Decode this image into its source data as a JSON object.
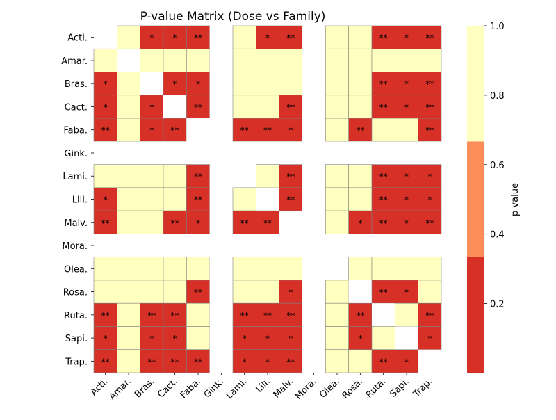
{
  "chart_data": {
    "type": "heatmap",
    "title": "P-value Matrix (Dose vs Family)",
    "labels": [
      "Acti.",
      "Amar.",
      "Bras.",
      "Cact.",
      "Faba.",
      "Gink.",
      "Lami.",
      "Lili.",
      "Malv.",
      "Mora.",
      "Olea.",
      "Rosa.",
      "Ruta.",
      "Sapi.",
      "Trap."
    ],
    "values": [
      [
        null,
        0.9,
        0.02,
        0.02,
        0.004,
        null,
        0.9,
        0.02,
        0.004,
        null,
        0.9,
        0.9,
        0.004,
        0.02,
        0.004
      ],
      [
        0.9,
        null,
        0.9,
        0.9,
        0.9,
        null,
        0.9,
        0.9,
        0.9,
        null,
        0.9,
        0.9,
        0.9,
        0.9,
        0.9
      ],
      [
        0.02,
        0.9,
        null,
        0.02,
        0.02,
        null,
        0.9,
        0.9,
        0.9,
        null,
        0.9,
        0.9,
        0.004,
        0.02,
        0.004
      ],
      [
        0.02,
        0.9,
        0.02,
        null,
        0.004,
        null,
        0.9,
        0.9,
        0.004,
        null,
        0.9,
        0.9,
        0.004,
        0.02,
        0.004
      ],
      [
        0.004,
        0.9,
        0.02,
        0.004,
        null,
        null,
        0.004,
        0.004,
        0.02,
        null,
        0.9,
        0.004,
        0.9,
        0.9,
        0.004
      ],
      [
        null,
        null,
        null,
        null,
        null,
        null,
        null,
        null,
        null,
        null,
        null,
        null,
        null,
        null,
        null
      ],
      [
        0.9,
        0.9,
        0.9,
        0.9,
        0.004,
        null,
        null,
        0.9,
        0.004,
        null,
        0.9,
        0.9,
        0.004,
        0.02,
        0.02
      ],
      [
        0.02,
        0.9,
        0.9,
        0.9,
        0.004,
        null,
        0.9,
        null,
        0.004,
        null,
        0.9,
        0.9,
        0.004,
        0.02,
        0.02
      ],
      [
        0.004,
        0.9,
        0.9,
        0.004,
        0.02,
        null,
        0.004,
        0.004,
        null,
        null,
        0.9,
        0.02,
        0.004,
        0.02,
        0.004
      ],
      [
        null,
        null,
        null,
        null,
        null,
        null,
        null,
        null,
        null,
        null,
        null,
        null,
        null,
        null,
        null
      ],
      [
        0.9,
        0.9,
        0.9,
        0.9,
        0.9,
        null,
        0.9,
        0.9,
        0.9,
        null,
        null,
        0.9,
        0.9,
        0.9,
        0.9
      ],
      [
        0.9,
        0.9,
        0.9,
        0.9,
        0.004,
        null,
        0.9,
        0.9,
        0.02,
        null,
        0.9,
        null,
        0.004,
        0.02,
        0.9
      ],
      [
        0.004,
        0.9,
        0.004,
        0.004,
        0.9,
        null,
        0.004,
        0.004,
        0.004,
        null,
        0.9,
        0.004,
        null,
        0.9,
        0.004
      ],
      [
        0.02,
        0.9,
        0.02,
        0.02,
        0.9,
        null,
        0.02,
        0.02,
        0.02,
        null,
        0.9,
        0.02,
        0.9,
        null,
        0.02
      ],
      [
        0.004,
        0.9,
        0.004,
        0.004,
        0.004,
        null,
        0.02,
        0.02,
        0.004,
        null,
        0.9,
        0.9,
        0.004,
        0.02,
        null
      ]
    ],
    "annotations": [
      [
        "",
        "",
        "*",
        "*",
        "**",
        "",
        "",
        "*",
        "**",
        "",
        "",
        "",
        "**",
        "*",
        "**"
      ],
      [
        "",
        "",
        "",
        "",
        "",
        "",
        "",
        "",
        "",
        "",
        "",
        "",
        "",
        "",
        ""
      ],
      [
        "*",
        "",
        "",
        "*",
        "*",
        "",
        "",
        "",
        "",
        "",
        "",
        "",
        "**",
        "*",
        "**"
      ],
      [
        "*",
        "",
        "*",
        "",
        "**",
        "",
        "",
        "",
        "**",
        "",
        "",
        "",
        "**",
        "*",
        "**"
      ],
      [
        "**",
        "",
        "*",
        "**",
        "",
        "",
        "**",
        "**",
        "*",
        "",
        "",
        "**",
        "",
        "",
        "**"
      ],
      [
        "",
        "",
        "",
        "",
        "",
        "",
        "",
        "",
        "",
        "",
        "",
        "",
        "",
        "",
        ""
      ],
      [
        "",
        "",
        "",
        "",
        "**",
        "",
        "",
        "",
        "**",
        "",
        "",
        "",
        "**",
        "*",
        "*"
      ],
      [
        "*",
        "",
        "",
        "",
        "**",
        "",
        "",
        "",
        "**",
        "",
        "",
        "",
        "**",
        "*",
        "*"
      ],
      [
        "**",
        "",
        "",
        "**",
        "*",
        "",
        "**",
        "**",
        "",
        "",
        "",
        "*",
        "**",
        "*",
        "**"
      ],
      [
        "",
        "",
        "",
        "",
        "",
        "",
        "",
        "",
        "",
        "",
        "",
        "",
        "",
        "",
        ""
      ],
      [
        "",
        "",
        "",
        "",
        "",
        "",
        "",
        "",
        "",
        "",
        "",
        "",
        "",
        "",
        ""
      ],
      [
        "",
        "",
        "",
        "",
        "**",
        "",
        "",
        "",
        "*",
        "",
        "",
        "",
        "**",
        "*",
        ""
      ],
      [
        "**",
        "",
        "**",
        "**",
        "",
        "",
        "**",
        "**",
        "**",
        "",
        "",
        "**",
        "",
        "",
        "**"
      ],
      [
        "*",
        "",
        "*",
        "*",
        "",
        "",
        "*",
        "*",
        "*",
        "",
        "",
        "*",
        "",
        "",
        "*"
      ],
      [
        "**",
        "",
        "**",
        "**",
        "**",
        "",
        "*",
        "*",
        "**",
        "",
        "",
        "",
        "**",
        "*",
        ""
      ]
    ],
    "colorbar": {
      "label": "p value",
      "vmin": 0.001,
      "vmax": 1.0,
      "ticks": [
        0.2,
        0.4,
        0.6,
        0.8,
        1.0
      ],
      "tick_labels": [
        "0.2",
        "0.4",
        "0.6",
        "0.8",
        "1.0"
      ],
      "bands": [
        {
          "from": 0.001,
          "to": 0.334,
          "color": "#d73027"
        },
        {
          "from": 0.334,
          "to": 0.667,
          "color": "#fc8d59"
        },
        {
          "from": 0.667,
          "to": 1.0,
          "color": "#ffffbf"
        }
      ]
    },
    "missing_color": "#ffffff",
    "grid_color": "#808080"
  }
}
